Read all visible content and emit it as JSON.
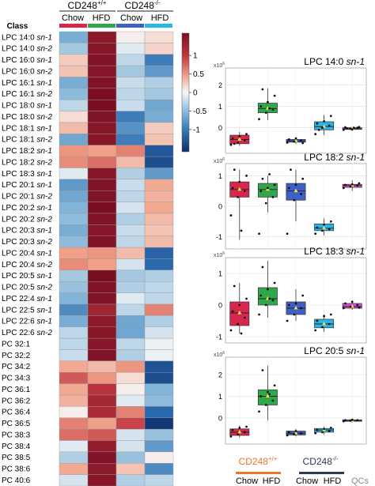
{
  "chart_data": [
    {
      "type": "heatmap",
      "header": {
        "group1": "CD248",
        "group1_sup": "+/+",
        "group2": "CD248",
        "group2_sup": "-/-",
        "sub1": "Chow",
        "sub2": "HFD",
        "sub3": "Chow",
        "sub4": "HFD",
        "class_label": "Class"
      },
      "row_prefixes": [
        "LPC 14:0 ",
        "LPC 14:0 ",
        "LPC 16:0 ",
        "LPC 16:0 ",
        "LPC 16:1 ",
        "LPC 16:1 ",
        "LPC 18:0 ",
        "LPC 18:0 ",
        "LPC 18:1 ",
        "LPC 18:1 ",
        "LPC 18:2 ",
        "LPC 18:2 ",
        "LPC 18:3 ",
        "LPC 20:1 ",
        "LPC 20:1 ",
        "LPC 20:2 ",
        "LPC 20:2 ",
        "LPC 20:3 ",
        "LPC 20:3 ",
        "LPC 20:4 ",
        "LPC 20:4 ",
        "LPC 20:5 ",
        "LPC 20:5 ",
        "LPC 22:4 ",
        "LPC 22:5 ",
        "LPC 22:6 ",
        "LPC 22:6 ",
        "PC 32:1",
        "PC 32:2",
        "PC 34:2",
        "PC 34:3",
        "PC 36:1",
        "PC 36:2",
        "PC 36:4",
        "PC 36:5",
        "PC 38:3",
        "PC 38:4",
        "PC 38:5",
        "PC 38:6",
        "PC 40:6"
      ],
      "row_suffixes": [
        "sn-1",
        "sn-2",
        "sn-1",
        "sn-2",
        "sn-1",
        "sn-2",
        "sn-1",
        "sn-2",
        "sn-1",
        "sn-2",
        "sn-1",
        "sn-2",
        "sn-1",
        "sn-1",
        "sn-2",
        "sn-1",
        "sn-2",
        "sn-1",
        "sn-2",
        "sn-1",
        "sn-2",
        "sn-1",
        "sn-2",
        "sn-1",
        "sn-1",
        "sn-1",
        "sn-2",
        "",
        "",
        "",
        "",
        "",
        "",
        "",
        "",
        "",
        "",
        "",
        "",
        ""
      ],
      "columns": [
        "CD248+/+ Chow",
        "CD248+/+ HFD",
        "CD248-/- Chow",
        "CD248-/- HFD"
      ],
      "group_colors": [
        "#d8264c",
        "#2ea84a",
        "#3d5fc6",
        "#27b6e6"
      ],
      "values": [
        [
          -0.55,
          1.45,
          0.05,
          0.15
        ],
        [
          -0.35,
          1.5,
          -0.1,
          0.2
        ],
        [
          0.25,
          1.55,
          -0.25,
          -0.9
        ],
        [
          0.3,
          1.5,
          -0.35,
          -0.7
        ],
        [
          -0.55,
          1.55,
          -0.2,
          -0.3
        ],
        [
          -0.45,
          1.6,
          -0.25,
          -0.35
        ],
        [
          -0.25,
          1.6,
          -0.2,
          -0.6
        ],
        [
          0.15,
          1.55,
          -0.9,
          -0.55
        ],
        [
          0.35,
          1.5,
          -0.75,
          0.25
        ],
        [
          -0.6,
          1.5,
          -0.9,
          0.3
        ],
        [
          0.55,
          0.5,
          0.65,
          -1.2
        ],
        [
          0.6,
          0.75,
          0.35,
          -1.3
        ],
        [
          -0.1,
          1.5,
          -0.3,
          -0.7
        ],
        [
          -0.7,
          1.55,
          -0.2,
          0.45
        ],
        [
          -0.6,
          1.55,
          -0.25,
          0.4
        ],
        [
          -0.5,
          1.6,
          -0.15,
          0.45
        ],
        [
          -0.45,
          1.55,
          -0.3,
          0.35
        ],
        [
          -0.55,
          1.5,
          -0.2,
          0.3
        ],
        [
          -0.45,
          1.55,
          -0.25,
          0.35
        ],
        [
          0.5,
          0.55,
          0.35,
          -1.1
        ],
        [
          0.6,
          0.5,
          -0.15,
          -1.05
        ],
        [
          -0.35,
          1.6,
          -0.35,
          -0.3
        ],
        [
          -0.4,
          1.55,
          -0.3,
          -0.25
        ],
        [
          -0.5,
          1.55,
          -0.1,
          -0.25
        ],
        [
          -0.8,
          1.3,
          -0.25,
          0.65
        ],
        [
          -0.55,
          1.45,
          -0.6,
          -0.3
        ],
        [
          -0.25,
          1.5,
          -0.6,
          -0.15
        ],
        [
          -0.25,
          1.5,
          -0.25,
          -0.05
        ],
        [
          -0.2,
          1.55,
          -0.3,
          -0.05
        ],
        [
          0.45,
          0.35,
          0.55,
          -1.25
        ],
        [
          0.85,
          0.55,
          0.15,
          -1.3
        ],
        [
          0.45,
          1.1,
          0.05,
          -0.5
        ],
        [
          0.4,
          1.25,
          -0.1,
          -0.45
        ],
        [
          0.05,
          1.2,
          0.65,
          -1.05
        ],
        [
          0.65,
          0.5,
          0.95,
          -1.5
        ],
        [
          0.75,
          0.85,
          -0.15,
          -0.4
        ],
        [
          -0.1,
          1.4,
          -0.15,
          -0.7
        ],
        [
          -0.3,
          1.55,
          -0.4,
          0.05
        ],
        [
          0.45,
          1.45,
          0.3,
          -0.8
        ],
        [
          -0.15,
          1.5,
          -0.3,
          -0.25
        ]
      ],
      "colorbar": {
        "ticks": [
          "1",
          "0.5",
          "0",
          "-0.5",
          "-1"
        ],
        "tick_values": [
          1,
          0.5,
          0,
          -0.5,
          -1
        ],
        "range": [
          -1.6,
          1.6
        ]
      }
    },
    {
      "type": "box",
      "title_prefix": "LPC 14:0 ",
      "title_suffix": "sn-1",
      "y_unit_base": "x10",
      "y_unit_exp": "6",
      "ylim": [
        -1.2,
        2.8
      ],
      "y_ticks": [
        0,
        1,
        2
      ],
      "groups": [
        "CD248+/+ Chow",
        "CD248+/+ HFD",
        "CD248-/- Chow",
        "CD248-/- HFD",
        "QCs"
      ],
      "boxes": [
        [
          -0.85,
          -0.75,
          -0.55,
          -0.35,
          -0.2
        ],
        [
          0.35,
          0.7,
          0.9,
          1.15,
          1.85
        ],
        [
          -0.75,
          -0.68,
          -0.62,
          -0.55,
          -0.45
        ],
        [
          -0.35,
          -0.1,
          0.05,
          0.28,
          0.6
        ],
        [
          -0.15,
          -0.08,
          -0.05,
          0.0,
          0.05
        ]
      ],
      "points": [
        [
          -0.8,
          -0.7,
          -0.6,
          -0.5,
          -0.4,
          -0.3,
          -0.75
        ],
        [
          0.4,
          0.7,
          0.85,
          1.0,
          1.2,
          1.5,
          1.8,
          0.9
        ],
        [
          -0.7,
          -0.65,
          -0.6,
          -0.55,
          -0.5,
          -0.72
        ],
        [
          -0.3,
          0.0,
          0.1,
          0.2,
          0.3,
          0.55,
          -0.1
        ],
        [
          -0.1,
          -0.05,
          0.0,
          0.02,
          -0.08,
          0.03,
          -0.03,
          0.0
        ]
      ]
    },
    {
      "type": "box",
      "title_prefix": "LPC 18:2 ",
      "title_suffix": "sn-1",
      "y_unit_base": "x10",
      "y_unit_exp": "6",
      "ylim": [
        -1.4,
        1.4
      ],
      "y_ticks": [
        -1,
        0,
        1
      ],
      "groups": [
        "CD248+/+ Chow",
        "CD248+/+ HFD",
        "CD248-/- Chow",
        "CD248-/- HFD",
        "QCs"
      ],
      "boxes": [
        [
          -1.1,
          0.3,
          0.55,
          0.8,
          1.2
        ],
        [
          -0.2,
          0.3,
          0.55,
          0.75,
          1.0
        ],
        [
          -0.5,
          0.2,
          0.5,
          0.75,
          1.2
        ],
        [
          -0.95,
          -0.8,
          -0.72,
          -0.58,
          -0.4
        ],
        [
          0.5,
          0.62,
          0.68,
          0.72,
          0.85
        ]
      ],
      "points": [
        [
          -0.3,
          0.3,
          0.5,
          0.6,
          0.8,
          1.0,
          1.2,
          -0.8
        ],
        [
          -0.9,
          0.1,
          0.3,
          0.5,
          0.6,
          0.7,
          0.9,
          1.05
        ],
        [
          -0.9,
          0.2,
          0.4,
          0.6,
          0.7,
          0.9,
          1.2
        ],
        [
          -0.9,
          -0.8,
          -0.75,
          -0.7,
          -0.6,
          -0.5
        ],
        [
          0.6,
          0.65,
          0.68,
          0.7,
          0.72,
          0.75
        ]
      ]
    },
    {
      "type": "box",
      "title_prefix": "LPC 18:3 ",
      "title_suffix": "sn-1",
      "y_unit_base": "x10",
      "y_unit_exp": "6",
      "ylim": [
        -1.2,
        1.5
      ],
      "y_ticks": [
        -1,
        0,
        1
      ],
      "groups": [
        "CD248+/+ Chow",
        "CD248+/+ HFD",
        "CD248-/- Chow",
        "CD248-/- HFD",
        "QCs"
      ],
      "boxes": [
        [
          -0.9,
          -0.65,
          -0.25,
          0.1,
          0.7
        ],
        [
          -0.4,
          0.0,
          0.2,
          0.55,
          1.4
        ],
        [
          -0.5,
          -0.3,
          -0.1,
          0.1,
          0.5
        ],
        [
          -0.85,
          -0.72,
          -0.6,
          -0.45,
          -0.3
        ],
        [
          -0.15,
          -0.1,
          -0.05,
          0.05,
          0.15
        ]
      ],
      "points": [
        [
          -0.8,
          -0.6,
          -0.4,
          -0.2,
          0.0,
          0.2,
          0.6,
          -0.9
        ],
        [
          -0.3,
          0.0,
          0.15,
          0.3,
          0.5,
          0.7,
          1.2,
          0.2
        ],
        [
          -0.5,
          -0.3,
          -0.1,
          0.0,
          0.05,
          0.3
        ],
        [
          -0.8,
          -0.7,
          -0.6,
          -0.5,
          -0.35,
          -0.3
        ],
        [
          -0.1,
          -0.05,
          0.0,
          0.05,
          0.1,
          -0.08
        ]
      ]
    },
    {
      "type": "box",
      "title_prefix": "LPC 20:5 ",
      "title_suffix": "sn-1",
      "y_unit_base": "x10",
      "y_unit_exp": "6",
      "ylim": [
        -1.2,
        2.8
      ],
      "y_ticks": [
        0,
        1,
        2
      ],
      "groups": [
        "CD248+/+ Chow",
        "CD248+/+ HFD",
        "CD248-/- Chow",
        "CD248-/- HFD",
        "QCs"
      ],
      "boxes": [
        [
          -0.9,
          -0.8,
          -0.65,
          -0.5,
          -0.35
        ],
        [
          -0.1,
          0.6,
          1.0,
          1.3,
          2.4
        ],
        [
          -0.85,
          -0.78,
          -0.7,
          -0.6,
          -0.5
        ],
        [
          -0.75,
          -0.65,
          -0.55,
          -0.48,
          -0.4
        ],
        [
          -0.2,
          -0.15,
          -0.12,
          -0.08,
          -0.05
        ]
      ],
      "points": [
        [
          -0.85,
          -0.75,
          -0.65,
          -0.55,
          -0.45,
          -0.4
        ],
        [
          0.3,
          0.6,
          0.8,
          1.0,
          1.2,
          1.5,
          2.2,
          1.1
        ],
        [
          -0.8,
          -0.75,
          -0.7,
          -0.65,
          -0.6
        ],
        [
          -0.7,
          -0.65,
          -0.6,
          -0.55,
          -0.5,
          -0.45
        ],
        [
          -0.15,
          -0.12,
          -0.1,
          -0.1,
          -0.08
        ]
      ]
    }
  ],
  "bottom_legend": {
    "group1": "CD248",
    "group1_sup": "+/+",
    "group2": "CD248",
    "group2_sup": "-/-",
    "sub1": "Chow",
    "sub2": "HFD",
    "sub3": "Chow",
    "sub4": "HFD",
    "qc": "QCs"
  }
}
